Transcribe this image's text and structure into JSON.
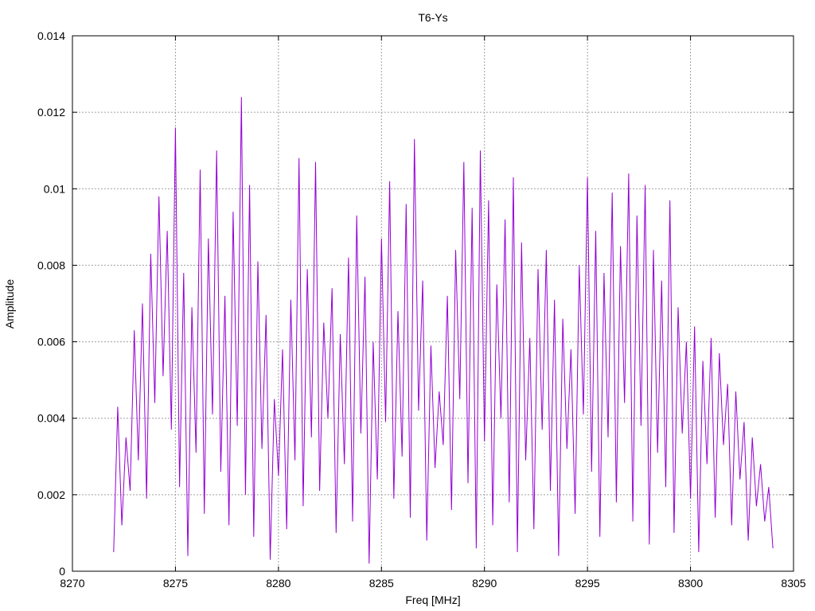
{
  "chart_data": {
    "type": "line",
    "title": "T6-Ys",
    "xlabel": "Freq [MHz]",
    "ylabel": "Amplitude",
    "xlim": [
      8270,
      8305
    ],
    "ylim": [
      0,
      0.014
    ],
    "x_ticks": [
      "8270",
      "8275",
      "8280",
      "8285",
      "8290",
      "8295",
      "8300",
      "8305"
    ],
    "y_ticks": [
      "0",
      "0.002",
      "0.004",
      "0.006",
      "0.008",
      "0.01",
      "0.012",
      "0.014"
    ],
    "grid": true,
    "series_color": "#9400d3",
    "series": [
      {
        "x": [
          8272.0,
          8272.2,
          8272.4,
          8272.6,
          8272.8,
          8273.0,
          8273.2,
          8273.4,
          8273.6,
          8273.8,
          8274.0,
          8274.2,
          8274.4,
          8274.6,
          8274.8,
          8275.0,
          8275.2,
          8275.4,
          8275.6,
          8275.8,
          8276.0,
          8276.2,
          8276.4,
          8276.6,
          8276.8,
          8277.0,
          8277.2,
          8277.4,
          8277.6,
          8277.8,
          8278.0,
          8278.2,
          8278.4,
          8278.6,
          8278.8,
          8279.0,
          8279.2,
          8279.4,
          8279.6,
          8279.8,
          8280.0,
          8280.2,
          8280.4,
          8280.6,
          8280.8,
          8281.0,
          8281.2,
          8281.4,
          8281.6,
          8281.8,
          8282.0,
          8282.2,
          8282.4,
          8282.6,
          8282.8,
          8283.0,
          8283.2,
          8283.4,
          8283.6,
          8283.8,
          8284.0,
          8284.2,
          8284.4,
          8284.6,
          8284.8,
          8285.0,
          8285.2,
          8285.4,
          8285.6,
          8285.8,
          8286.0,
          8286.2,
          8286.4,
          8286.6,
          8286.8,
          8287.0,
          8287.2,
          8287.4,
          8287.6,
          8287.8,
          8288.0,
          8288.2,
          8288.4,
          8288.6,
          8288.8,
          8289.0,
          8289.2,
          8289.4,
          8289.6,
          8289.8,
          8290.0,
          8290.2,
          8290.4,
          8290.6,
          8290.8,
          8291.0,
          8291.2,
          8291.4,
          8291.6,
          8291.8,
          8292.0,
          8292.2,
          8292.4,
          8292.6,
          8292.8,
          8293.0,
          8293.2,
          8293.4,
          8293.6,
          8293.8,
          8294.0,
          8294.2,
          8294.4,
          8294.6,
          8294.8,
          8295.0,
          8295.2,
          8295.4,
          8295.6,
          8295.8,
          8296.0,
          8296.2,
          8296.4,
          8296.6,
          8296.8,
          8297.0,
          8297.2,
          8297.4,
          8297.6,
          8297.8,
          8298.0,
          8298.2,
          8298.4,
          8298.6,
          8298.8,
          8299.0,
          8299.2,
          8299.4,
          8299.6,
          8299.8,
          8300.0,
          8300.2,
          8300.4,
          8300.6,
          8300.8,
          8301.0,
          8301.2,
          8301.4,
          8301.6,
          8301.8,
          8302.0,
          8302.2,
          8302.4,
          8302.6,
          8302.8,
          8303.0,
          8303.2,
          8303.4,
          8303.6,
          8303.8,
          8304.0
        ],
        "y": [
          0.0005,
          0.0043,
          0.0012,
          0.0035,
          0.0021,
          0.0063,
          0.0029,
          0.007,
          0.0019,
          0.0083,
          0.0044,
          0.0098,
          0.0051,
          0.0089,
          0.0037,
          0.0116,
          0.0022,
          0.0078,
          0.0004,
          0.0069,
          0.0031,
          0.0105,
          0.0015,
          0.0087,
          0.0041,
          0.011,
          0.0026,
          0.0072,
          0.0012,
          0.0094,
          0.0038,
          0.0124,
          0.002,
          0.0101,
          0.0009,
          0.0081,
          0.0032,
          0.0067,
          0.0003,
          0.0045,
          0.0025,
          0.0058,
          0.0011,
          0.0071,
          0.0029,
          0.0108,
          0.0017,
          0.0079,
          0.0035,
          0.0107,
          0.0021,
          0.0065,
          0.004,
          0.0074,
          0.001,
          0.0062,
          0.0028,
          0.0082,
          0.0013,
          0.0093,
          0.0036,
          0.0077,
          0.0002,
          0.006,
          0.0024,
          0.0087,
          0.0039,
          0.0102,
          0.0019,
          0.0068,
          0.003,
          0.0096,
          0.0014,
          0.0113,
          0.0042,
          0.0076,
          0.0008,
          0.0059,
          0.0027,
          0.0047,
          0.0033,
          0.0072,
          0.0016,
          0.0084,
          0.0045,
          0.0107,
          0.0023,
          0.0095,
          0.0006,
          0.011,
          0.0034,
          0.0097,
          0.0012,
          0.0075,
          0.004,
          0.0092,
          0.0018,
          0.0103,
          0.0005,
          0.0086,
          0.0029,
          0.0061,
          0.0011,
          0.0079,
          0.0037,
          0.0084,
          0.0021,
          0.0071,
          0.0004,
          0.0066,
          0.0032,
          0.0058,
          0.0015,
          0.008,
          0.0041,
          0.0103,
          0.0026,
          0.0089,
          0.0009,
          0.0078,
          0.0035,
          0.0099,
          0.0018,
          0.0085,
          0.0044,
          0.0104,
          0.0013,
          0.0093,
          0.0038,
          0.0101,
          0.0007,
          0.0084,
          0.0031,
          0.0076,
          0.0022,
          0.0097,
          0.001,
          0.0069,
          0.0036,
          0.006,
          0.0019,
          0.0064,
          0.0005,
          0.0055,
          0.0028,
          0.0061,
          0.0014,
          0.0057,
          0.0033,
          0.0049,
          0.0012,
          0.0047,
          0.0024,
          0.0039,
          0.0008,
          0.0035,
          0.0017,
          0.0028,
          0.0013,
          0.0022,
          0.0006
        ]
      }
    ]
  }
}
